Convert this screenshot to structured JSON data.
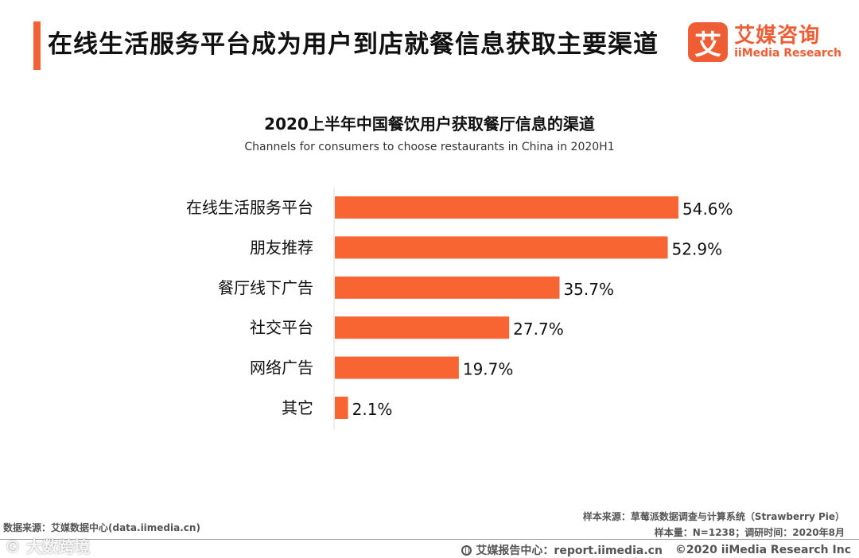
{
  "header": {
    "title": "在线生活服务平台成为用户到店就餐信息获取主要渠道",
    "logo_mark": "艾",
    "logo_cn": "艾媒咨询",
    "logo_en": "iiMedia Research"
  },
  "colors": {
    "accent": "#f26237",
    "bar": "#f96433",
    "text": "#111111"
  },
  "chart_data": {
    "type": "bar",
    "orientation": "horizontal",
    "title": "2020上半年中国餐饮用户获取餐厅信息的渠道",
    "subtitle": "Channels for consumers to choose restaurants in China in 2020H1",
    "categories": [
      "在线生活服务平台",
      "朋友推荐",
      "餐厅线下广告",
      "社交平台",
      "网络广告",
      "其它"
    ],
    "values": [
      54.6,
      52.9,
      35.7,
      27.7,
      19.7,
      2.1
    ],
    "value_labels": [
      "54.6%",
      "52.9%",
      "35.7%",
      "27.7%",
      "19.7%",
      "2.1%"
    ],
    "unit": "%",
    "xlim": [
      0,
      60
    ],
    "xlabel": "",
    "ylabel": "",
    "grid": false,
    "legend": "none"
  },
  "footer": {
    "data_source": "数据来源：艾媒数据中心(data.iimedia.cn)",
    "sample_source": "样本来源：草莓派数据调查与计算系统（Strawberry Pie）",
    "sample_info": "样本量：N=1238；调研时间：2020年8月",
    "report_center": "艾媒报告中心：report.iimedia.cn",
    "copyright": "©2020  iiMedia Research  Inc",
    "watermark": "© 大数跨境"
  }
}
